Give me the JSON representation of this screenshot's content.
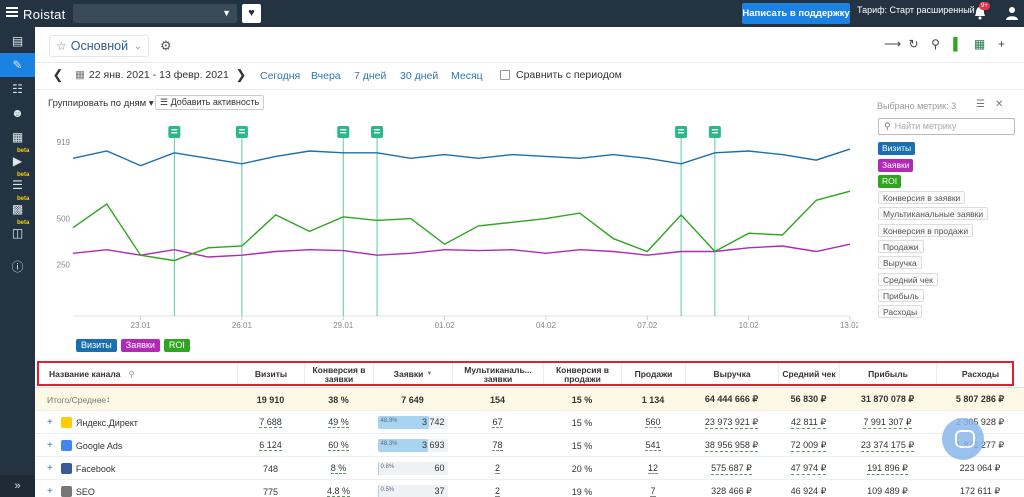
{
  "topbar": {
    "logo": "Roistat",
    "support_button": "Написать в поддержку",
    "tariff": "Тариф: Старт расширенный",
    "notification_badge": "9+"
  },
  "sidebar": {
    "beta_label": "beta"
  },
  "dashboard": {
    "title": "Основной"
  },
  "period": {
    "range": "22 янв. 2021 - 13 февр. 2021",
    "quick": [
      "Сегодня",
      "Вчера",
      "7 дней",
      "30 дней",
      "Месяц"
    ],
    "compare_label": "Сравнить с периодом"
  },
  "controls": {
    "group_by": "Группировать по дням",
    "add_activity": "Добавить активность"
  },
  "metrics_panel": {
    "selected": "Выбрано метрик: 3",
    "search_placeholder": "Найти метрику",
    "active": [
      {
        "label": "Визиты",
        "color": "#1c6fae"
      },
      {
        "label": "Заявки",
        "color": "#b02ab4"
      },
      {
        "label": "ROI",
        "color": "#2fa51f"
      }
    ],
    "inactive": [
      "Конверсия в заявки",
      "Мультиканальные заявки",
      "Конверсия в продажи",
      "Продажи",
      "Выручка",
      "Средний чек",
      "Прибыль",
      "Расходы"
    ]
  },
  "chart_data": {
    "type": "line",
    "x": [
      "21.01",
      "22.01",
      "23.01",
      "24.01",
      "25.01",
      "26.01",
      "27.01",
      "28.01",
      "29.01",
      "30.01",
      "31.01",
      "01.02",
      "02.02",
      "03.02",
      "04.02",
      "05.02",
      "06.02",
      "07.02",
      "08.02",
      "09.02",
      "10.02",
      "11.02",
      "12.02",
      "13.02"
    ],
    "x_tick_labels": [
      "23.01",
      "26.01",
      "29.01",
      "01.02",
      "04.02",
      "07.02",
      "10.02",
      "13.02"
    ],
    "y_tick_labels": [
      "919",
      "500",
      "250"
    ],
    "ylim": [
      0,
      919
    ],
    "series": [
      {
        "name": "Визиты",
        "color": "#1c6fae",
        "values": [
          830,
          870,
          790,
          860,
          830,
          800,
          840,
          870,
          860,
          860,
          830,
          850,
          830,
          850,
          840,
          830,
          850,
          830,
          800,
          860,
          870,
          850,
          820,
          880
        ]
      },
      {
        "name": "Заявки",
        "color": "#b02ab4",
        "values": [
          310,
          330,
          300,
          330,
          290,
          300,
          320,
          330,
          325,
          300,
          310,
          330,
          325,
          330,
          310,
          330,
          320,
          300,
          320,
          320,
          340,
          350,
          320,
          360
        ]
      },
      {
        "name": "ROI",
        "color": "#2fa51f",
        "values": [
          450,
          580,
          300,
          270,
          340,
          350,
          520,
          430,
          510,
          490,
          500,
          360,
          460,
          480,
          500,
          530,
          390,
          320,
          520,
          320,
          420,
          410,
          600,
          650
        ]
      }
    ],
    "activity_markers_x": [
      "24.01",
      "26.01",
      "29.01",
      "30.01",
      "08.02",
      "09.02"
    ],
    "legend": [
      "Визиты",
      "Заявки",
      "ROI"
    ],
    "legend_placement": "bottom-left"
  },
  "table": {
    "headers": [
      "Название канала",
      "Визиты",
      "Конверсия в заявки",
      "Заявки",
      "Мультиканаль... заявки",
      "Конверсия в продажи",
      "Продажи",
      "Выручка",
      "Средний чек",
      "Прибыль",
      "Расходы"
    ],
    "sort_indicator": "▼",
    "total": {
      "name": "Итого/Среднее",
      "values": [
        "19 910",
        "38 %",
        "7 649",
        "154",
        "15 %",
        "1 134",
        "64 444 666 ₽",
        "56 830 ₽",
        "31 870 078 ₽",
        "5 807 286 ₽"
      ]
    },
    "rows": [
      {
        "name": "Яндекс.Директ",
        "icon_color": "#ffcc00",
        "visits": "7 688",
        "conv": "49 %",
        "leads_pct": "48.9%",
        "leads_fill": 0.489,
        "leads": "3 742",
        "multi": "67",
        "conv_sale": "15 %",
        "sales": "560",
        "revenue": "23 973 921 ₽",
        "avg": "42 811 ₽",
        "profit": "7 991 307 ₽",
        "costs": "2 305 928 ₽"
      },
      {
        "name": "Google Ads",
        "icon_color": "#4285f4",
        "visits": "6 124",
        "conv": "60 %",
        "leads_pct": "48.3%",
        "leads_fill": 0.483,
        "leads": "3 693",
        "multi": "78",
        "conv_sale": "15 %",
        "sales": "541",
        "revenue": "38 956 958 ₽",
        "avg": "72 009 ₽",
        "profit": "23 374 175 ₽",
        "costs": "1 831 277 ₽"
      },
      {
        "name": "Facebook",
        "icon_color": "#3b5998",
        "visits": "748",
        "conv": "8 %",
        "leads_pct": "0.8%",
        "leads_fill": 0.008,
        "leads": "60",
        "multi": "2",
        "conv_sale": "20 %",
        "sales": "12",
        "revenue": "575 687 ₽",
        "avg": "47 974 ₽",
        "profit": "191 896 ₽",
        "costs": "223 064 ₽"
      },
      {
        "name": "SEO",
        "icon_color": "#777777",
        "visits": "775",
        "conv": "4.8 %",
        "leads_pct": "0.5%",
        "leads_fill": 0.005,
        "leads": "37",
        "multi": "2",
        "conv_sale": "19 %",
        "sales": "7",
        "revenue": "328 466 ₽",
        "avg": "46 924 ₽",
        "profit": "109 489 ₽",
        "costs": "172 611 ₽"
      }
    ]
  }
}
